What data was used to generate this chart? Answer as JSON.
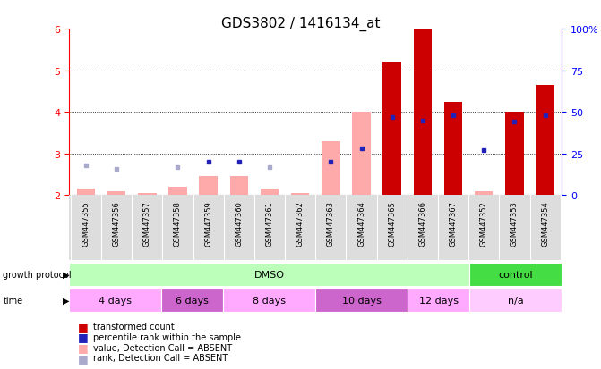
{
  "title": "GDS3802 / 1416134_at",
  "samples": [
    "GSM447355",
    "GSM447356",
    "GSM447357",
    "GSM447358",
    "GSM447359",
    "GSM447360",
    "GSM447361",
    "GSM447362",
    "GSM447363",
    "GSM447364",
    "GSM447365",
    "GSM447366",
    "GSM447367",
    "GSM447352",
    "GSM447353",
    "GSM447354"
  ],
  "transformed_count": [
    2.15,
    2.1,
    2.05,
    2.2,
    2.45,
    2.45,
    2.15,
    2.05,
    3.3,
    4.0,
    5.2,
    6.0,
    4.25,
    2.1,
    4.0,
    4.65
  ],
  "transformed_absent": [
    true,
    true,
    true,
    true,
    true,
    true,
    true,
    true,
    true,
    true,
    false,
    false,
    false,
    true,
    false,
    false
  ],
  "percentile_rank": [
    18,
    16,
    null,
    17,
    20,
    20,
    17,
    null,
    20,
    28,
    47,
    45,
    48,
    27,
    44,
    48
  ],
  "percentile_absent": [
    true,
    true,
    true,
    true,
    false,
    false,
    true,
    true,
    false,
    false,
    false,
    false,
    false,
    false,
    false,
    false
  ],
  "ylim_left": [
    2.0,
    6.0
  ],
  "ylim_right": [
    0,
    100
  ],
  "yticks_left": [
    2,
    3,
    4,
    5,
    6
  ],
  "yticks_right": [
    0,
    25,
    50,
    75,
    100
  ],
  "ytick_labels_right": [
    "0",
    "25",
    "50",
    "75",
    "100%"
  ],
  "bar_color_present": "#cc0000",
  "bar_color_absent": "#ffaaaa",
  "dot_color_present": "#2222bb",
  "dot_color_absent": "#aaaacc",
  "background_color": "#ffffff",
  "title_fontsize": 11,
  "groups": [
    {
      "label": "DMSO",
      "start": 0,
      "end": 12,
      "color": "#bbffbb"
    },
    {
      "label": "control",
      "start": 13,
      "end": 15,
      "color": "#44dd44"
    }
  ],
  "time_groups": [
    {
      "label": "4 days",
      "start": 0,
      "end": 2,
      "color": "#ffaaff"
    },
    {
      "label": "6 days",
      "start": 3,
      "end": 4,
      "color": "#cc66cc"
    },
    {
      "label": "8 days",
      "start": 5,
      "end": 7,
      "color": "#ffaaff"
    },
    {
      "label": "10 days",
      "start": 8,
      "end": 10,
      "color": "#cc66cc"
    },
    {
      "label": "12 days",
      "start": 11,
      "end": 12,
      "color": "#ffaaff"
    },
    {
      "label": "n/a",
      "start": 13,
      "end": 15,
      "color": "#ffccff"
    }
  ],
  "legend_items": [
    {
      "label": "transformed count",
      "color": "#cc0000"
    },
    {
      "label": "percentile rank within the sample",
      "color": "#2222bb"
    },
    {
      "label": "value, Detection Call = ABSENT",
      "color": "#ffaaaa"
    },
    {
      "label": "rank, Detection Call = ABSENT",
      "color": "#aaaacc"
    }
  ]
}
